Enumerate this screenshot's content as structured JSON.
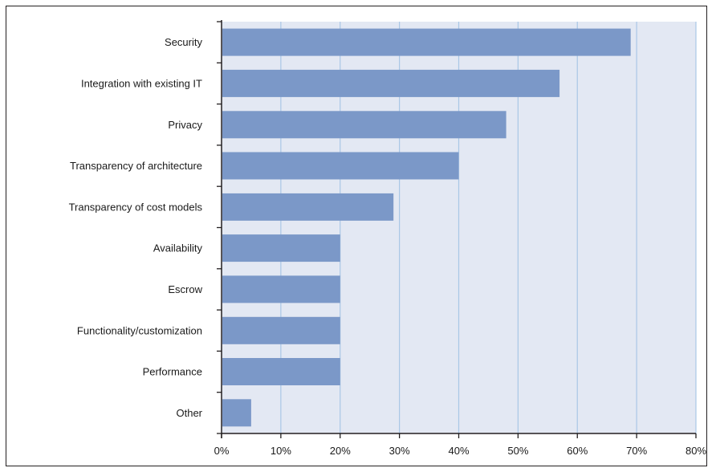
{
  "chart_data": {
    "type": "bar",
    "orientation": "horizontal",
    "categories": [
      "Security",
      "Integration with existing IT",
      "Privacy",
      "Transparency of architecture",
      "Transparency of cost models",
      "Availability",
      "Escrow",
      "Functionality/customization",
      "Performance",
      "Other"
    ],
    "values": [
      69,
      57,
      48,
      40,
      29,
      20,
      20,
      20,
      20,
      5
    ],
    "unit": "%",
    "xlim": [
      0,
      80
    ],
    "xticks": [
      0,
      10,
      20,
      30,
      40,
      50,
      60,
      70,
      80
    ],
    "xtick_labels": [
      "0%",
      "10%",
      "20%",
      "30%",
      "40%",
      "50%",
      "60%",
      "70%",
      "80%"
    ],
    "title": "",
    "xlabel": "",
    "ylabel": "",
    "grid": "vertical",
    "legend": "none",
    "colors": {
      "bar": "#7b98c8",
      "plot_background": "#e3e8f3",
      "grid": "#a9c8e6",
      "axis": "#231f20",
      "text": "#1a1a1a"
    }
  }
}
